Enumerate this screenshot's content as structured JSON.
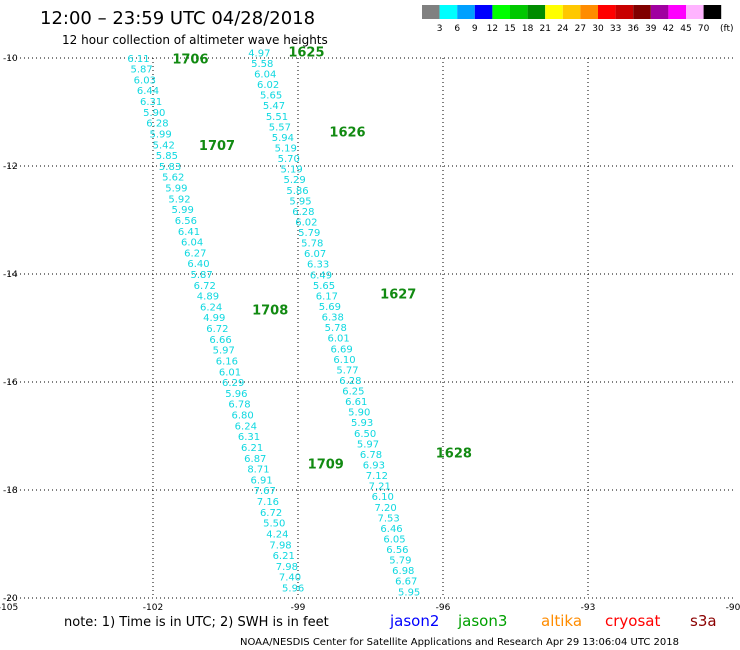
{
  "title": "12:00 – 23:59 UTC 04/28/2018",
  "subtitle": "12 hour collection of altimeter wave heights",
  "legend": {
    "unit": "(ft)",
    "bins": [
      {
        "label": "3",
        "color": "#808080"
      },
      {
        "label": "6",
        "color": "#00ffff"
      },
      {
        "label": "9",
        "color": "#00a0ff"
      },
      {
        "label": "12",
        "color": "#0000ff"
      },
      {
        "label": "15",
        "color": "#00ff00"
      },
      {
        "label": "18",
        "color": "#00c800"
      },
      {
        "label": "21",
        "color": "#008c00"
      },
      {
        "label": "24",
        "color": "#ffff00"
      },
      {
        "label": "27",
        "color": "#ffc800"
      },
      {
        "label": "30",
        "color": "#ff8c00"
      },
      {
        "label": "33",
        "color": "#ff0000"
      },
      {
        "label": "36",
        "color": "#c80000"
      },
      {
        "label": "39",
        "color": "#800000"
      },
      {
        "label": "42",
        "color": "#a000a0"
      },
      {
        "label": "45",
        "color": "#ff00ff"
      },
      {
        "label": "70",
        "color": "#ffb4ff"
      },
      {
        "label": "",
        "color": "#000000"
      }
    ]
  },
  "chart_data": {
    "type": "scatter",
    "lon_range": [
      -105,
      -90
    ],
    "lat_range": [
      -20,
      -10
    ],
    "x_ticks": [
      {
        "v": -105,
        "label": "-105"
      },
      {
        "v": -102,
        "label": "-102"
      },
      {
        "v": -99,
        "label": "-99"
      },
      {
        "v": -96,
        "label": "-96"
      },
      {
        "v": -93,
        "label": "-93"
      },
      {
        "v": -90,
        "label": "-90"
      }
    ],
    "y_ticks": [
      {
        "v": -10,
        "label": "-10"
      },
      {
        "v": -12,
        "label": "-12"
      },
      {
        "v": -14,
        "label": "-14"
      },
      {
        "v": -16,
        "label": "-16"
      },
      {
        "v": -18,
        "label": "-18"
      },
      {
        "v": -20,
        "label": "-20"
      }
    ],
    "grid": true,
    "tracks": [
      {
        "lon_start": -102.3,
        "lat_start": -10.07,
        "lon_end": -99.1,
        "lat_end": -19.88,
        "values": [
          "6.11",
          "5.87",
          "6.03",
          "6.44",
          "6.31",
          "5.90",
          "6.28",
          "5.99",
          "5.42",
          "5.85",
          "5.83",
          "5.62",
          "5.99",
          "5.92",
          "5.99",
          "6.56",
          "6.41",
          "6.04",
          "6.27",
          "6.40",
          "5.87",
          "6.72",
          "4.89",
          "6.24",
          "4.99",
          "6.72",
          "6.66",
          "5.97",
          "6.16",
          "6.01",
          "6.29",
          "5.96",
          "6.78",
          "6.80",
          "6.24",
          "6.31",
          "6.21",
          "6.87",
          "8.71",
          "6.91",
          "7.67",
          "7.16",
          "6.72",
          "5.50",
          "4.24",
          "7.98",
          "6.21",
          "7.98",
          "7.40",
          "5.96"
        ]
      },
      {
        "lon_start": -99.8,
        "lat_start": -9.97,
        "lon_end": -96.7,
        "lat_end": -19.95,
        "values": [
          "4.97",
          "5.58",
          "6.04",
          "6.02",
          "5.65",
          "5.47",
          "5.51",
          "5.57",
          "5.94",
          "5.19",
          "5.70",
          "5.19",
          "5.29",
          "5.86",
          "5.95",
          "6.28",
          "6.02",
          "5.79",
          "5.78",
          "6.07",
          "6.33",
          "6.49",
          "5.65",
          "6.17",
          "5.69",
          "6.38",
          "5.78",
          "6.01",
          "6.69",
          "6.10",
          "5.77",
          "6.28",
          "6.25",
          "6.61",
          "5.90",
          "5.93",
          "6.50",
          "5.97",
          "6.78",
          "6.93",
          "7.12",
          "7.21",
          "6.10",
          "7.20",
          "7.53",
          "6.46",
          "6.05",
          "6.56",
          "5.79",
          "6.98",
          "6.67",
          "5.95"
        ]
      }
    ],
    "pass_labels": [
      {
        "text": "1706",
        "lon": -101.6,
        "lat": -10.1
      },
      {
        "text": "1707",
        "lon": -101.05,
        "lat": -11.7
      },
      {
        "text": "1708",
        "lon": -99.95,
        "lat": -14.75
      },
      {
        "text": "1709",
        "lon": -98.8,
        "lat": -17.6
      },
      {
        "text": "1625",
        "lon": -99.2,
        "lat": -9.97
      },
      {
        "text": "1626",
        "lon": -98.35,
        "lat": -11.45
      },
      {
        "text": "1627",
        "lon": -97.3,
        "lat": -14.45
      },
      {
        "text": "1628",
        "lon": -96.15,
        "lat": -17.4
      }
    ]
  },
  "note": "note:  1) Time is in UTC; 2) SWH is in feet",
  "satellites": [
    {
      "name": "jason2",
      "color": "#0000ff"
    },
    {
      "name": "jason3",
      "color": "#00a000"
    },
    {
      "name": "altika",
      "color": "#ff8c00"
    },
    {
      "name": "cryosat",
      "color": "#ff0000"
    },
    {
      "name": "s3a",
      "color": "#8b0000"
    }
  ],
  "footer": "NOAA/NESDIS Center for Satellite Applications and Research    Apr 29 13:06:04 UTC 2018"
}
